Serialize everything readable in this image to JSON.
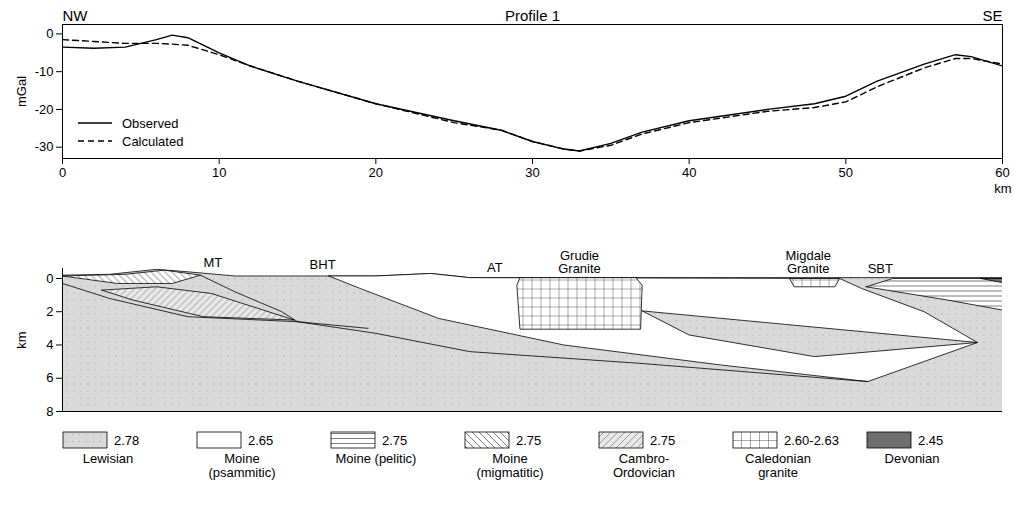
{
  "chart_data": [
    {
      "type": "line",
      "title": "Profile 1",
      "left_label": "NW",
      "right_label": "SE",
      "x_label": "km",
      "y_label": "mGal",
      "x": [
        0,
        2,
        4,
        6,
        7,
        8,
        10,
        12,
        15,
        20,
        25,
        28,
        30,
        32,
        33,
        35,
        37,
        40,
        45,
        48,
        50,
        52,
        55,
        57,
        58,
        60
      ],
      "series": [
        {
          "name": "Observed",
          "color": "#000000",
          "line_style": "solid",
          "values": [
            -3.5,
            -3.8,
            -3.5,
            -1.5,
            -0.3,
            -1,
            -5,
            -8.5,
            -12.5,
            -18.5,
            -23,
            -25.5,
            -28.5,
            -30.5,
            -31,
            -29,
            -26,
            -23,
            -20,
            -18.5,
            -16.5,
            -12.5,
            -8,
            -5.5,
            -6,
            -8.5
          ]
        },
        {
          "name": "Calculated",
          "color": "#000000",
          "line_style": "dashed",
          "values": [
            -1.5,
            -2,
            -2.5,
            -2.5,
            -2.7,
            -3,
            -5.5,
            -8.5,
            -12.5,
            -18.5,
            -23.5,
            -25.5,
            -28.5,
            -30.5,
            -31,
            -29.5,
            -26.5,
            -23.5,
            -20.5,
            -19.5,
            -18,
            -14,
            -9,
            -6.5,
            -6.5,
            -8
          ]
        }
      ],
      "xlim": [
        0,
        60
      ],
      "ylim": [
        -33,
        2.5
      ],
      "xticks": [
        0,
        10,
        20,
        30,
        40,
        50,
        60
      ],
      "yticks": [
        -30,
        -20,
        -10,
        0
      ],
      "legend": "bottom-left"
    },
    {
      "type": "cross-section",
      "y_label": "km",
      "xlim": [
        0,
        60
      ],
      "ylim": [
        -0.6,
        8
      ],
      "yticks": [
        0,
        2,
        4,
        6,
        8
      ],
      "tick_labels": "y",
      "units": [
        {
          "name": "Lewisian",
          "density": 2.78,
          "color": "#d9d9d9"
        },
        {
          "name": "Moine (psammitic)",
          "density": 2.65,
          "color": "#ffffff"
        },
        {
          "name": "Moine (pelitic)",
          "density": 2.75,
          "color": "#ffffff"
        },
        {
          "name": "Moine (migmatitic)",
          "density": 2.75,
          "color": "#ffffff"
        },
        {
          "name": "Cambro-Ordovician",
          "density": 2.75,
          "color": "#e8e8e8"
        },
        {
          "name": "Caledonian granite",
          "density": {
            "value": [
              2.6,
              2.63
            ],
            "label": "2.60-2.63"
          },
          "color": "#ffffff"
        },
        {
          "name": "Devonian",
          "density": 2.45,
          "color": "#6f6f6f"
        }
      ],
      "bodies": [
        {
          "unit": "Lewisian",
          "points": [
            [
              0,
              -0.2
            ],
            [
              3,
              -0.25
            ],
            [
              6,
              -0.55
            ],
            [
              8,
              -0.4
            ],
            [
              11,
              -0.15
            ],
            [
              20,
              -0.15
            ],
            [
              23.5,
              -0.3
            ],
            [
              26,
              -0.05
            ],
            [
              60,
              -0.05
            ],
            [
              60,
              8
            ],
            [
              0,
              8
            ]
          ]
        },
        {
          "unit": "Moine (migmatitic)",
          "points": [
            [
              0,
              -0.15
            ],
            [
              4,
              -0.25
            ],
            [
              6.5,
              -0.5
            ],
            [
              8.8,
              -0.2
            ],
            [
              7,
              0.3
            ],
            [
              3.5,
              0.3
            ]
          ]
        },
        {
          "unit": "Cambro-Ordovician",
          "points": [
            [
              2.5,
              0.7
            ],
            [
              6,
              0.5
            ],
            [
              9.5,
              0.9
            ],
            [
              14.8,
              2.5
            ],
            [
              9,
              2.3
            ],
            [
              4.5,
              1.3
            ]
          ]
        },
        {
          "unit": "Moine (psammitic)",
          "points": [
            [
              17,
              -0.15
            ],
            [
              20,
              -0.15
            ],
            [
              23.5,
              -0.3
            ],
            [
              26,
              -0.05
            ],
            [
              49.6,
              0
            ],
            [
              51,
              0.6
            ],
            [
              55,
              2
            ],
            [
              58.4,
              3.85
            ],
            [
              51.4,
              6.2
            ],
            [
              42,
              5.2
            ],
            [
              32,
              4
            ],
            [
              24,
              2.4
            ],
            [
              19,
              0.6
            ]
          ]
        },
        {
          "unit": "Lewisian",
          "points": [
            [
              37,
              1.95
            ],
            [
              58.4,
              3.85
            ],
            [
              48,
              4.7
            ],
            [
              40,
              3.4
            ]
          ]
        },
        {
          "unit": "Caledonian granite",
          "points": [
            [
              29.2,
              -0.05
            ],
            [
              36.6,
              -0.05
            ],
            [
              37,
              0.4
            ],
            [
              36.9,
              3.05
            ],
            [
              29.2,
              3.05
            ],
            [
              29,
              0.4
            ]
          ]
        },
        {
          "unit": "Caledonian granite",
          "points": [
            [
              46.4,
              0
            ],
            [
              49.6,
              0
            ],
            [
              49.3,
              0.5
            ],
            [
              46.7,
              0.5
            ]
          ]
        },
        {
          "unit": "Moine (pelitic)",
          "points": [
            [
              51.3,
              0.5
            ],
            [
              53,
              0
            ],
            [
              60,
              0
            ],
            [
              60,
              1.9
            ],
            [
              56.5,
              1.3
            ]
          ]
        },
        {
          "unit": "Devonian",
          "points": [
            [
              58.6,
              0
            ],
            [
              60,
              0
            ],
            [
              60,
              0.25
            ]
          ]
        }
      ],
      "faults": [
        [
          [
            8.8,
            -0.2
          ],
          [
            11,
            0.8
          ],
          [
            14,
            2
          ],
          [
            15,
            2.6
          ],
          [
            19.5,
            3
          ]
        ],
        [
          [
            0,
            0.3
          ],
          [
            3,
            1.2
          ],
          [
            8,
            2.3
          ],
          [
            15,
            2.6
          ]
        ],
        [
          [
            15,
            2.6
          ],
          [
            20,
            3.3
          ],
          [
            26,
            4.4
          ],
          [
            36.8,
            5.1
          ],
          [
            51.4,
            6.2
          ]
        ]
      ],
      "labels": [
        {
          "text": "MT",
          "x": 9.6,
          "y": -0.7
        },
        {
          "text": "BHT",
          "x": 16.6,
          "y": -0.6
        },
        {
          "text": "AT",
          "x": 27.6,
          "y": -0.4
        },
        {
          "text": "Grudie Granite",
          "x": 33,
          "y": -0.3
        },
        {
          "text": "Migdale Granite",
          "x": 47.6,
          "y": -0.3
        },
        {
          "text": "SBT",
          "x": 52.2,
          "y": -0.3
        }
      ]
    }
  ]
}
